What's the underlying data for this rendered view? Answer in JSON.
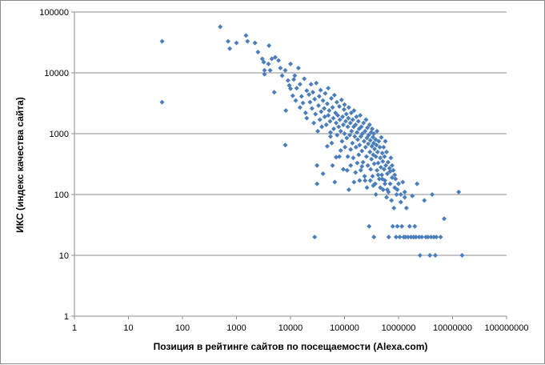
{
  "chart_data": {
    "type": "scatter",
    "xlabel": "Позиция в рейтинге сайтов по посещаемости (Alexa.com)",
    "ylabel": "ИКС (индекс качества сайта)",
    "x_scale": "log",
    "y_scale": "log",
    "xlim": [
      1,
      100000000
    ],
    "ylim": [
      1,
      100000
    ],
    "x_ticks": [
      "1",
      "10",
      "100",
      "1000",
      "10000",
      "100000",
      "1000000",
      "10000000",
      "100000000"
    ],
    "y_ticks": [
      "1",
      "10",
      "100",
      "1000",
      "10000",
      "100000"
    ],
    "grid": "horizontal",
    "legend": "none",
    "marker": "diamond",
    "marker_color": "#4a7ebb",
    "points": [
      [
        42,
        33000
      ],
      [
        42,
        3300
      ],
      [
        500,
        57000
      ],
      [
        700,
        33000
      ],
      [
        750,
        25000
      ],
      [
        1000,
        31000
      ],
      [
        1500,
        41000
      ],
      [
        1600,
        33000
      ],
      [
        2200,
        31000
      ],
      [
        2500,
        22000
      ],
      [
        3000,
        17000
      ],
      [
        3200,
        15000
      ],
      [
        3300,
        11000
      ],
      [
        3300,
        9500
      ],
      [
        3900,
        14000
      ],
      [
        4000,
        28000
      ],
      [
        4200,
        11000
      ],
      [
        4500,
        17000
      ],
      [
        5000,
        4800
      ],
      [
        5200,
        18000
      ],
      [
        6000,
        16000
      ],
      [
        6500,
        12000
      ],
      [
        7000,
        9000
      ],
      [
        8000,
        11000
      ],
      [
        8000,
        650
      ],
      [
        8200,
        2400
      ],
      [
        9000,
        7500
      ],
      [
        9500,
        6200
      ],
      [
        10000,
        5500
      ],
      [
        10000,
        14000
      ],
      [
        11000,
        4200
      ],
      [
        11500,
        7800
      ],
      [
        12000,
        9000
      ],
      [
        12500,
        3500
      ],
      [
        13000,
        5600
      ],
      [
        14000,
        12000
      ],
      [
        15000,
        2700
      ],
      [
        15000,
        6500
      ],
      [
        16000,
        4100
      ],
      [
        17000,
        3200
      ],
      [
        18000,
        8000
      ],
      [
        19000,
        2200
      ],
      [
        20000,
        5100
      ],
      [
        20000,
        1800
      ],
      [
        22000,
        4400
      ],
      [
        23000,
        3300
      ],
      [
        24000,
        6500
      ],
      [
        25000,
        2600
      ],
      [
        26000,
        4800
      ],
      [
        27000,
        1500
      ],
      [
        28000,
        3700
      ],
      [
        28000,
        20
      ],
      [
        29000,
        2100
      ],
      [
        30000,
        6800
      ],
      [
        31000,
        150
      ],
      [
        31000,
        300
      ],
      [
        32000,
        1100
      ],
      [
        33000,
        2900
      ],
      [
        34000,
        4100
      ],
      [
        35000,
        1700
      ],
      [
        36000,
        5200
      ],
      [
        37000,
        2300
      ],
      [
        38000,
        1300
      ],
      [
        40000,
        3500
      ],
      [
        40000,
        220
      ],
      [
        42000,
        2600
      ],
      [
        43000,
        1900
      ],
      [
        44000,
        4600
      ],
      [
        46000,
        1400
      ],
      [
        48000,
        3100
      ],
      [
        50000,
        2000
      ],
      [
        50000,
        5600
      ],
      [
        52000,
        2400
      ],
      [
        54000,
        1600
      ],
      [
        55000,
        1050
      ],
      [
        57000,
        3800
      ],
      [
        58000,
        700
      ],
      [
        60000,
        2700
      ],
      [
        62000,
        1800
      ],
      [
        63000,
        1200
      ],
      [
        65000,
        4300
      ],
      [
        66000,
        160
      ],
      [
        68000,
        2200
      ],
      [
        70000,
        1500
      ],
      [
        72000,
        3300
      ],
      [
        73000,
        950
      ],
      [
        75000,
        2000
      ],
      [
        78000,
        1300
      ],
      [
        80000,
        2800
      ],
      [
        80000,
        420
      ],
      [
        82000,
        1700
      ],
      [
        85000,
        1100
      ],
      [
        88000,
        3600
      ],
      [
        90000,
        750
      ],
      [
        92000,
        1900
      ],
      [
        95000,
        1400
      ],
      [
        98000,
        2500
      ],
      [
        100000,
        1000
      ],
      [
        100000,
        3000
      ],
      [
        102000,
        600
      ],
      [
        105000,
        1600
      ],
      [
        108000,
        2100
      ],
      [
        110000,
        850
      ],
      [
        112000,
        250
      ],
      [
        115000,
        1300
      ],
      [
        118000,
        1800
      ],
      [
        120000,
        2700
      ],
      [
        120000,
        120
      ],
      [
        125000,
        950
      ],
      [
        128000,
        1500
      ],
      [
        130000,
        550
      ],
      [
        133000,
        2200
      ],
      [
        135000,
        1100
      ],
      [
        140000,
        700
      ],
      [
        142000,
        1700
      ],
      [
        145000,
        400
      ],
      [
        148000,
        1300
      ],
      [
        150000,
        2400
      ],
      [
        150000,
        160
      ],
      [
        155000,
        900
      ],
      [
        160000,
        1400
      ],
      [
        163000,
        600
      ],
      [
        166000,
        1900
      ],
      [
        170000,
        1050
      ],
      [
        172000,
        330
      ],
      [
        175000,
        800
      ],
      [
        180000,
        1600
      ],
      [
        183000,
        450
      ],
      [
        186000,
        1200
      ],
      [
        190000,
        650
      ],
      [
        195000,
        2000
      ],
      [
        200000,
        900
      ],
      [
        200000,
        250
      ],
      [
        205000,
        1300
      ],
      [
        210000,
        520
      ],
      [
        215000,
        1000
      ],
      [
        220000,
        340
      ],
      [
        225000,
        1500
      ],
      [
        230000,
        750
      ],
      [
        235000,
        200
      ],
      [
        240000,
        1100
      ],
      [
        245000,
        600
      ],
      [
        250000,
        1700
      ],
      [
        255000,
        420
      ],
      [
        260000,
        850
      ],
      [
        265000,
        1250
      ],
      [
        270000,
        300
      ],
      [
        275000,
        680
      ],
      [
        280000,
        950
      ],
      [
        285000,
        30
      ],
      [
        290000,
        1400
      ],
      [
        295000,
        500
      ],
      [
        300000,
        780
      ],
      [
        305000,
        260
      ],
      [
        310000,
        1050
      ],
      [
        315000,
        380
      ],
      [
        320000,
        620
      ],
      [
        325000,
        1200
      ],
      [
        330000,
        200
      ],
      [
        335000,
        880
      ],
      [
        340000,
        450
      ],
      [
        345000,
        700
      ],
      [
        350000,
        20
      ],
      [
        350000,
        1000
      ],
      [
        355000,
        320
      ],
      [
        360000,
        560
      ],
      [
        370000,
        150
      ],
      [
        375000,
        800
      ],
      [
        380000,
        420
      ],
      [
        390000,
        650
      ],
      [
        400000,
        250
      ],
      [
        400000,
        1100
      ],
      [
        410000,
        500
      ],
      [
        420000,
        330
      ],
      [
        430000,
        750
      ],
      [
        440000,
        180
      ],
      [
        450000,
        600
      ],
      [
        460000,
        400
      ],
      [
        470000,
        280
      ],
      [
        480000,
        870
      ],
      [
        490000,
        210
      ],
      [
        500000,
        480
      ],
      [
        510000,
        350
      ],
      [
        520000,
        120
      ],
      [
        530000,
        600
      ],
      [
        540000,
        260
      ],
      [
        550000,
        420
      ],
      [
        560000,
        170
      ],
      [
        570000,
        750
      ],
      [
        580000,
        300
      ],
      [
        600000,
        90
      ],
      [
        600000,
        500
      ],
      [
        620000,
        220
      ],
      [
        640000,
        340
      ],
      [
        650000,
        110
      ],
      [
        660000,
        20
      ],
      [
        680000,
        270
      ],
      [
        700000,
        150
      ],
      [
        720000,
        400
      ],
      [
        740000,
        80
      ],
      [
        760000,
        190
      ],
      [
        780000,
        30
      ],
      [
        800000,
        250
      ],
      [
        820000,
        60
      ],
      [
        850000,
        130
      ],
      [
        880000,
        180
      ],
      [
        900000,
        20
      ],
      [
        920000,
        100
      ],
      [
        950000,
        30
      ],
      [
        1000000,
        150
      ],
      [
        1050000,
        20
      ],
      [
        1100000,
        75
      ],
      [
        1150000,
        30
      ],
      [
        1200000,
        160
      ],
      [
        1250000,
        20
      ],
      [
        1300000,
        110
      ],
      [
        1350000,
        20
      ],
      [
        1400000,
        60
      ],
      [
        1500000,
        20
      ],
      [
        1600000,
        30
      ],
      [
        1700000,
        20
      ],
      [
        1800000,
        95
      ],
      [
        1900000,
        20
      ],
      [
        2000000,
        30
      ],
      [
        2100000,
        20
      ],
      [
        2200000,
        150
      ],
      [
        2400000,
        20
      ],
      [
        2500000,
        10
      ],
      [
        2700000,
        20
      ],
      [
        3000000,
        80
      ],
      [
        3200000,
        20
      ],
      [
        3500000,
        20
      ],
      [
        3800000,
        10
      ],
      [
        4000000,
        20
      ],
      [
        4200000,
        100
      ],
      [
        4500000,
        20
      ],
      [
        4800000,
        10
      ],
      [
        5000000,
        20
      ],
      [
        6000000,
        20
      ],
      [
        7000000,
        40
      ],
      [
        13000000,
        110
      ],
      [
        15000000,
        10
      ],
      [
        48000,
        620
      ],
      [
        55000,
        900
      ],
      [
        60000,
        300
      ],
      [
        70000,
        410
      ],
      [
        85000,
        530
      ],
      [
        95000,
        260
      ],
      [
        115000,
        420
      ],
      [
        130000,
        300
      ],
      [
        160000,
        230
      ],
      [
        190000,
        170
      ],
      [
        210000,
        290
      ],
      [
        240000,
        170
      ],
      [
        260000,
        130
      ],
      [
        300000,
        170
      ],
      [
        340000,
        140
      ],
      [
        380000,
        100
      ],
      [
        420000,
        210
      ],
      [
        460000,
        130
      ],
      [
        500000,
        180
      ],
      [
        560000,
        150
      ],
      [
        620000,
        120
      ],
      [
        700000,
        240
      ],
      [
        760000,
        300
      ],
      [
        850000,
        210
      ],
      [
        950000,
        120
      ],
      [
        1100000,
        100
      ],
      [
        1300000,
        90
      ]
    ]
  }
}
